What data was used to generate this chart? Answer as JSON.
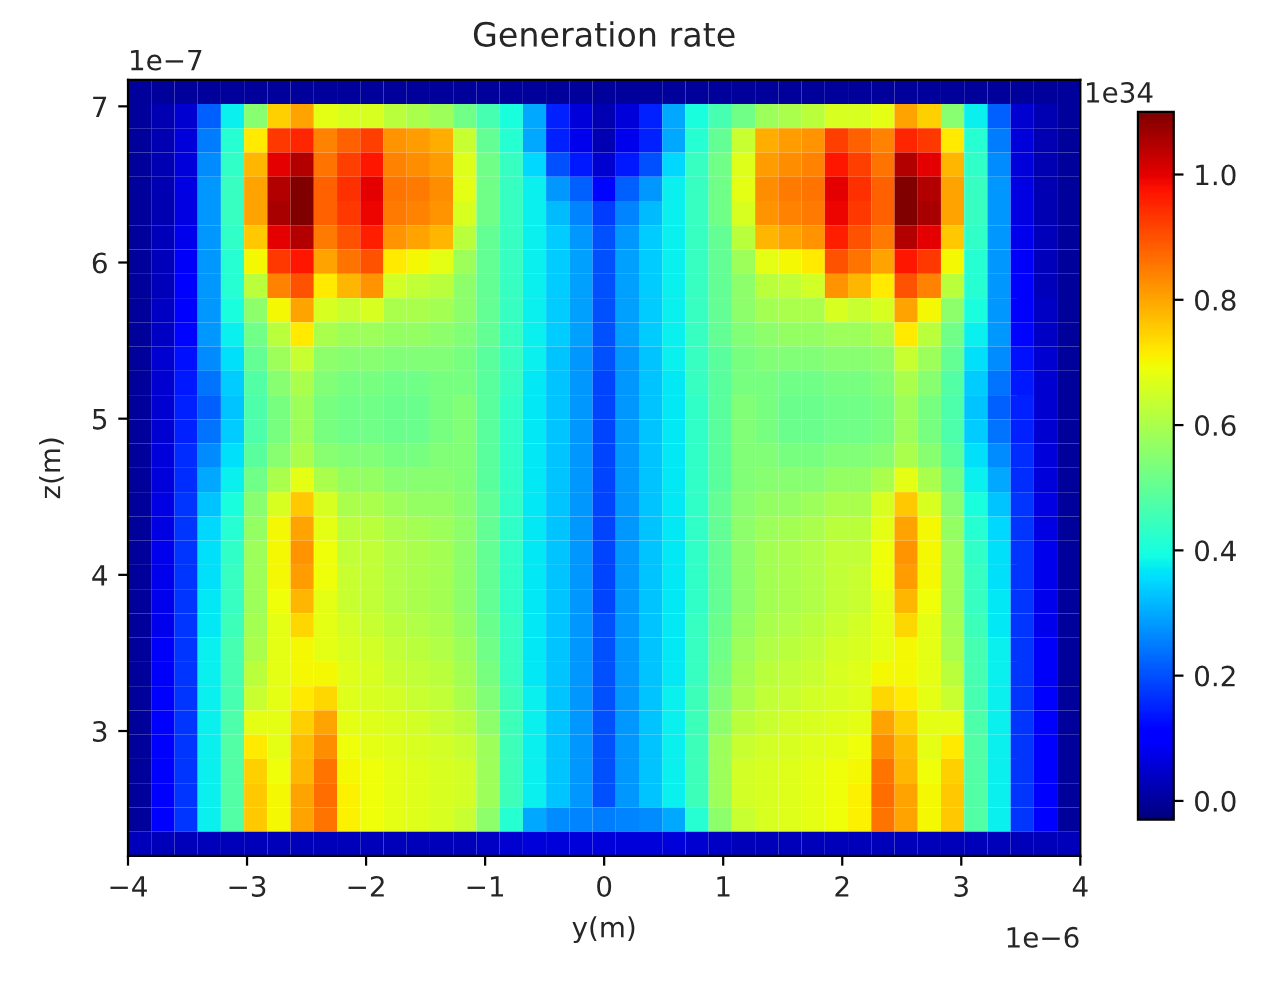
{
  "chart_data": {
    "type": "heatmap",
    "title": "Generation rate",
    "xlabel": "y(m)",
    "ylabel": "z(m)",
    "xlim": [
      -4,
      4
    ],
    "xticks": [
      {
        "value": -4,
        "label": "−4"
      },
      {
        "value": -3,
        "label": "−3"
      },
      {
        "value": -2,
        "label": "−2"
      },
      {
        "value": -1,
        "label": "−1"
      },
      0,
      1,
      2,
      3,
      4
    ],
    "ylim": [
      2.2,
      7.17
    ],
    "yticks": [
      3,
      4,
      5,
      6,
      7
    ],
    "clim": [
      -0.03,
      1.1
    ],
    "cticks": [
      {
        "value": 0,
        "label": "0.0"
      },
      0.2,
      0.4,
      0.6,
      0.8,
      {
        "value": 1,
        "label": "1.0"
      }
    ],
    "annotations": [
      "1e−7",
      "1e34",
      "1e−6"
    ],
    "cells": [
      [
        0,
        0,
        0,
        0,
        0,
        0,
        0,
        0,
        0,
        0,
        0,
        0,
        0,
        0,
        0,
        0,
        0,
        0,
        0,
        0,
        0,
        0,
        0,
        0,
        0,
        0,
        0,
        0,
        0,
        0,
        0,
        0,
        0,
        0,
        0,
        0,
        0,
        0,
        0,
        0,
        0
      ],
      [
        0,
        0.02,
        0.05,
        0.22,
        0.38,
        0.55,
        0.75,
        0.8,
        0.68,
        0.66,
        0.66,
        0.62,
        0.6,
        0.58,
        0.52,
        0.46,
        0.4,
        0.3,
        0.15,
        0.06,
        0.02,
        0.06,
        0.15,
        0.3,
        0.4,
        0.46,
        0.52,
        0.58,
        0.6,
        0.62,
        0.66,
        0.66,
        0.68,
        0.8,
        0.75,
        0.55,
        0.38,
        0.22,
        0.05,
        0.02,
        0
      ],
      [
        0,
        0.02,
        0.06,
        0.25,
        0.42,
        0.72,
        0.93,
        0.95,
        0.84,
        0.88,
        0.92,
        0.82,
        0.81,
        0.79,
        0.64,
        0.5,
        0.42,
        0.3,
        0.15,
        0.08,
        0.02,
        0.08,
        0.15,
        0.3,
        0.42,
        0.5,
        0.64,
        0.79,
        0.81,
        0.82,
        0.92,
        0.88,
        0.84,
        0.95,
        0.93,
        0.72,
        0.42,
        0.25,
        0.06,
        0.02,
        0
      ],
      [
        0,
        0.02,
        0.06,
        0.27,
        0.43,
        0.78,
        1.0,
        1.05,
        0.86,
        0.92,
        0.97,
        0.84,
        0.83,
        0.81,
        0.67,
        0.52,
        0.44,
        0.35,
        0.2,
        0.14,
        0.05,
        0.14,
        0.2,
        0.35,
        0.44,
        0.52,
        0.67,
        0.81,
        0.83,
        0.84,
        0.97,
        0.92,
        0.86,
        1.05,
        1.0,
        0.78,
        0.43,
        0.27,
        0.06,
        0.02,
        0
      ],
      [
        0,
        0.02,
        0.07,
        0.28,
        0.44,
        0.8,
        1.05,
        1.1,
        0.88,
        0.94,
        1.0,
        0.86,
        0.85,
        0.83,
        0.68,
        0.52,
        0.44,
        0.38,
        0.28,
        0.22,
        0.12,
        0.22,
        0.28,
        0.38,
        0.44,
        0.52,
        0.68,
        0.83,
        0.85,
        0.86,
        1.0,
        0.94,
        0.88,
        1.1,
        1.05,
        0.8,
        0.44,
        0.28,
        0.07,
        0.02,
        0
      ],
      [
        0,
        0.02,
        0.07,
        0.28,
        0.44,
        0.8,
        1.06,
        1.1,
        0.88,
        0.93,
        0.99,
        0.85,
        0.84,
        0.82,
        0.66,
        0.52,
        0.44,
        0.38,
        0.32,
        0.26,
        0.18,
        0.26,
        0.32,
        0.38,
        0.44,
        0.52,
        0.66,
        0.82,
        0.84,
        0.85,
        0.99,
        0.93,
        0.88,
        1.1,
        1.06,
        0.8,
        0.44,
        0.28,
        0.07,
        0.02,
        0
      ],
      [
        0,
        0.03,
        0.08,
        0.28,
        0.43,
        0.76,
        1.0,
        1.05,
        0.85,
        0.9,
        0.96,
        0.82,
        0.8,
        0.78,
        0.62,
        0.5,
        0.44,
        0.38,
        0.34,
        0.28,
        0.2,
        0.28,
        0.34,
        0.38,
        0.44,
        0.5,
        0.62,
        0.78,
        0.8,
        0.82,
        0.96,
        0.9,
        0.85,
        1.05,
        1.0,
        0.76,
        0.43,
        0.28,
        0.08,
        0.03,
        0
      ],
      [
        0,
        0.03,
        0.09,
        0.28,
        0.42,
        0.7,
        0.93,
        0.97,
        0.8,
        0.86,
        0.9,
        0.72,
        0.7,
        0.68,
        0.58,
        0.5,
        0.44,
        0.38,
        0.34,
        0.29,
        0.2,
        0.29,
        0.34,
        0.38,
        0.44,
        0.5,
        0.58,
        0.68,
        0.7,
        0.72,
        0.9,
        0.86,
        0.8,
        0.97,
        0.93,
        0.7,
        0.42,
        0.28,
        0.09,
        0.03,
        0
      ],
      [
        0,
        0.03,
        0.1,
        0.28,
        0.42,
        0.62,
        0.84,
        0.9,
        0.72,
        0.78,
        0.82,
        0.65,
        0.63,
        0.62,
        0.56,
        0.5,
        0.44,
        0.38,
        0.34,
        0.29,
        0.2,
        0.29,
        0.34,
        0.38,
        0.44,
        0.5,
        0.56,
        0.62,
        0.63,
        0.65,
        0.82,
        0.78,
        0.72,
        0.9,
        0.84,
        0.62,
        0.42,
        0.28,
        0.1,
        0.03,
        0
      ],
      [
        0,
        0.04,
        0.11,
        0.28,
        0.4,
        0.56,
        0.7,
        0.8,
        0.66,
        0.64,
        0.66,
        0.6,
        0.6,
        0.59,
        0.56,
        0.5,
        0.44,
        0.38,
        0.34,
        0.29,
        0.2,
        0.29,
        0.34,
        0.38,
        0.44,
        0.5,
        0.56,
        0.59,
        0.6,
        0.6,
        0.66,
        0.64,
        0.66,
        0.8,
        0.7,
        0.56,
        0.4,
        0.28,
        0.11,
        0.04,
        0
      ],
      [
        0,
        0.04,
        0.12,
        0.28,
        0.38,
        0.52,
        0.62,
        0.72,
        0.6,
        0.58,
        0.58,
        0.57,
        0.57,
        0.56,
        0.54,
        0.5,
        0.44,
        0.38,
        0.34,
        0.29,
        0.2,
        0.29,
        0.34,
        0.38,
        0.44,
        0.5,
        0.54,
        0.56,
        0.57,
        0.57,
        0.58,
        0.58,
        0.6,
        0.72,
        0.62,
        0.52,
        0.38,
        0.28,
        0.12,
        0.04,
        0
      ],
      [
        0,
        0.05,
        0.13,
        0.27,
        0.36,
        0.5,
        0.58,
        0.64,
        0.56,
        0.55,
        0.55,
        0.54,
        0.54,
        0.54,
        0.53,
        0.49,
        0.44,
        0.38,
        0.33,
        0.28,
        0.2,
        0.28,
        0.33,
        0.38,
        0.44,
        0.49,
        0.53,
        0.54,
        0.54,
        0.54,
        0.55,
        0.55,
        0.56,
        0.64,
        0.58,
        0.5,
        0.36,
        0.27,
        0.13,
        0.05,
        0
      ],
      [
        0,
        0.05,
        0.14,
        0.24,
        0.34,
        0.48,
        0.55,
        0.6,
        0.54,
        0.53,
        0.53,
        0.52,
        0.52,
        0.53,
        0.53,
        0.49,
        0.44,
        0.37,
        0.33,
        0.28,
        0.19,
        0.28,
        0.33,
        0.37,
        0.44,
        0.49,
        0.53,
        0.53,
        0.52,
        0.52,
        0.53,
        0.53,
        0.54,
        0.6,
        0.55,
        0.48,
        0.34,
        0.24,
        0.14,
        0.05,
        0
      ],
      [
        0,
        0.05,
        0.15,
        0.22,
        0.33,
        0.47,
        0.53,
        0.58,
        0.53,
        0.52,
        0.52,
        0.51,
        0.51,
        0.53,
        0.54,
        0.49,
        0.43,
        0.37,
        0.33,
        0.28,
        0.19,
        0.28,
        0.33,
        0.37,
        0.43,
        0.49,
        0.54,
        0.53,
        0.51,
        0.51,
        0.52,
        0.52,
        0.53,
        0.58,
        0.53,
        0.47,
        0.33,
        0.22,
        0.15,
        0.05,
        0
      ],
      [
        0,
        0.05,
        0.15,
        0.24,
        0.34,
        0.47,
        0.53,
        0.58,
        0.53,
        0.52,
        0.52,
        0.51,
        0.51,
        0.53,
        0.54,
        0.49,
        0.43,
        0.37,
        0.33,
        0.28,
        0.19,
        0.28,
        0.33,
        0.37,
        0.43,
        0.49,
        0.54,
        0.53,
        0.51,
        0.51,
        0.52,
        0.52,
        0.53,
        0.58,
        0.53,
        0.47,
        0.34,
        0.24,
        0.15,
        0.05,
        0
      ],
      [
        0,
        0.06,
        0.16,
        0.27,
        0.36,
        0.49,
        0.55,
        0.6,
        0.55,
        0.54,
        0.54,
        0.53,
        0.53,
        0.54,
        0.54,
        0.49,
        0.43,
        0.37,
        0.33,
        0.28,
        0.19,
        0.28,
        0.33,
        0.37,
        0.43,
        0.49,
        0.54,
        0.54,
        0.53,
        0.53,
        0.54,
        0.54,
        0.55,
        0.6,
        0.55,
        0.49,
        0.36,
        0.27,
        0.16,
        0.06,
        0
      ],
      [
        0,
        0.06,
        0.16,
        0.3,
        0.38,
        0.52,
        0.6,
        0.68,
        0.6,
        0.57,
        0.57,
        0.55,
        0.55,
        0.55,
        0.54,
        0.49,
        0.43,
        0.37,
        0.33,
        0.28,
        0.19,
        0.28,
        0.33,
        0.37,
        0.43,
        0.49,
        0.54,
        0.55,
        0.55,
        0.55,
        0.57,
        0.57,
        0.6,
        0.68,
        0.6,
        0.52,
        0.38,
        0.3,
        0.16,
        0.06,
        0
      ],
      [
        0,
        0.07,
        0.17,
        0.33,
        0.4,
        0.55,
        0.66,
        0.76,
        0.66,
        0.6,
        0.6,
        0.58,
        0.57,
        0.57,
        0.55,
        0.5,
        0.43,
        0.37,
        0.33,
        0.28,
        0.19,
        0.28,
        0.33,
        0.37,
        0.43,
        0.5,
        0.55,
        0.57,
        0.57,
        0.58,
        0.6,
        0.6,
        0.66,
        0.76,
        0.66,
        0.55,
        0.4,
        0.33,
        0.17,
        0.07,
        0
      ],
      [
        0,
        0.07,
        0.17,
        0.35,
        0.42,
        0.57,
        0.7,
        0.8,
        0.68,
        0.62,
        0.62,
        0.6,
        0.59,
        0.58,
        0.56,
        0.5,
        0.43,
        0.37,
        0.33,
        0.28,
        0.19,
        0.28,
        0.33,
        0.37,
        0.43,
        0.5,
        0.56,
        0.58,
        0.59,
        0.6,
        0.62,
        0.62,
        0.68,
        0.8,
        0.7,
        0.57,
        0.42,
        0.35,
        0.17,
        0.07,
        0
      ],
      [
        0,
        0.08,
        0.17,
        0.36,
        0.43,
        0.58,
        0.7,
        0.82,
        0.69,
        0.63,
        0.63,
        0.61,
        0.6,
        0.59,
        0.56,
        0.5,
        0.43,
        0.37,
        0.33,
        0.28,
        0.19,
        0.28,
        0.33,
        0.37,
        0.43,
        0.5,
        0.56,
        0.59,
        0.6,
        0.61,
        0.63,
        0.63,
        0.69,
        0.82,
        0.7,
        0.58,
        0.43,
        0.36,
        0.17,
        0.08,
        0
      ],
      [
        0,
        0.08,
        0.17,
        0.36,
        0.44,
        0.58,
        0.7,
        0.81,
        0.69,
        0.64,
        0.63,
        0.61,
        0.6,
        0.59,
        0.56,
        0.5,
        0.43,
        0.37,
        0.33,
        0.28,
        0.19,
        0.28,
        0.33,
        0.37,
        0.43,
        0.5,
        0.56,
        0.59,
        0.6,
        0.61,
        0.63,
        0.64,
        0.69,
        0.81,
        0.7,
        0.58,
        0.44,
        0.36,
        0.17,
        0.08,
        0
      ],
      [
        0,
        0.08,
        0.17,
        0.37,
        0.44,
        0.58,
        0.69,
        0.78,
        0.68,
        0.64,
        0.63,
        0.61,
        0.6,
        0.59,
        0.56,
        0.5,
        0.43,
        0.37,
        0.33,
        0.28,
        0.19,
        0.28,
        0.33,
        0.37,
        0.43,
        0.5,
        0.56,
        0.59,
        0.6,
        0.61,
        0.63,
        0.64,
        0.68,
        0.78,
        0.69,
        0.58,
        0.44,
        0.37,
        0.17,
        0.08,
        0
      ],
      [
        0,
        0.08,
        0.17,
        0.37,
        0.45,
        0.59,
        0.68,
        0.74,
        0.68,
        0.65,
        0.64,
        0.62,
        0.61,
        0.6,
        0.57,
        0.51,
        0.44,
        0.37,
        0.33,
        0.28,
        0.2,
        0.28,
        0.33,
        0.37,
        0.44,
        0.51,
        0.57,
        0.6,
        0.61,
        0.62,
        0.64,
        0.65,
        0.68,
        0.74,
        0.68,
        0.59,
        0.45,
        0.37,
        0.17,
        0.08,
        0
      ],
      [
        0,
        0.09,
        0.17,
        0.38,
        0.46,
        0.6,
        0.68,
        0.7,
        0.68,
        0.66,
        0.65,
        0.63,
        0.62,
        0.61,
        0.58,
        0.52,
        0.44,
        0.37,
        0.33,
        0.28,
        0.2,
        0.28,
        0.33,
        0.37,
        0.44,
        0.52,
        0.58,
        0.61,
        0.62,
        0.63,
        0.65,
        0.66,
        0.68,
        0.7,
        0.68,
        0.6,
        0.46,
        0.38,
        0.17,
        0.09,
        0
      ],
      [
        0,
        0.09,
        0.17,
        0.38,
        0.46,
        0.62,
        0.68,
        0.7,
        0.7,
        0.67,
        0.66,
        0.64,
        0.63,
        0.62,
        0.59,
        0.53,
        0.44,
        0.37,
        0.33,
        0.28,
        0.2,
        0.28,
        0.33,
        0.37,
        0.44,
        0.53,
        0.59,
        0.62,
        0.63,
        0.64,
        0.66,
        0.67,
        0.7,
        0.7,
        0.68,
        0.62,
        0.46,
        0.38,
        0.17,
        0.09,
        0
      ],
      [
        0,
        0.1,
        0.17,
        0.38,
        0.46,
        0.64,
        0.68,
        0.72,
        0.74,
        0.67,
        0.66,
        0.65,
        0.64,
        0.63,
        0.6,
        0.54,
        0.45,
        0.38,
        0.33,
        0.28,
        0.2,
        0.28,
        0.33,
        0.38,
        0.45,
        0.54,
        0.6,
        0.63,
        0.64,
        0.65,
        0.66,
        0.67,
        0.74,
        0.72,
        0.68,
        0.64,
        0.46,
        0.38,
        0.17,
        0.1,
        0
      ],
      [
        0,
        0.1,
        0.17,
        0.38,
        0.47,
        0.68,
        0.68,
        0.75,
        0.8,
        0.68,
        0.67,
        0.66,
        0.65,
        0.64,
        0.62,
        0.56,
        0.45,
        0.38,
        0.33,
        0.28,
        0.2,
        0.28,
        0.33,
        0.38,
        0.45,
        0.56,
        0.62,
        0.64,
        0.65,
        0.66,
        0.67,
        0.68,
        0.8,
        0.75,
        0.68,
        0.68,
        0.47,
        0.38,
        0.17,
        0.1,
        0
      ],
      [
        0,
        0.1,
        0.17,
        0.38,
        0.48,
        0.72,
        0.68,
        0.77,
        0.83,
        0.69,
        0.68,
        0.67,
        0.66,
        0.65,
        0.64,
        0.58,
        0.45,
        0.38,
        0.33,
        0.28,
        0.2,
        0.28,
        0.33,
        0.38,
        0.45,
        0.58,
        0.64,
        0.65,
        0.66,
        0.67,
        0.68,
        0.69,
        0.83,
        0.77,
        0.68,
        0.72,
        0.48,
        0.38,
        0.17,
        0.1,
        0
      ],
      [
        0,
        0.1,
        0.17,
        0.38,
        0.48,
        0.75,
        0.69,
        0.78,
        0.86,
        0.7,
        0.69,
        0.68,
        0.67,
        0.66,
        0.65,
        0.58,
        0.45,
        0.38,
        0.33,
        0.28,
        0.2,
        0.28,
        0.33,
        0.38,
        0.45,
        0.58,
        0.65,
        0.66,
        0.67,
        0.68,
        0.69,
        0.7,
        0.86,
        0.78,
        0.69,
        0.75,
        0.48,
        0.38,
        0.17,
        0.1,
        0
      ],
      [
        0,
        0.1,
        0.17,
        0.38,
        0.48,
        0.76,
        0.7,
        0.8,
        0.87,
        0.71,
        0.69,
        0.68,
        0.67,
        0.66,
        0.65,
        0.58,
        0.45,
        0.38,
        0.33,
        0.28,
        0.2,
        0.28,
        0.33,
        0.38,
        0.45,
        0.58,
        0.65,
        0.66,
        0.67,
        0.68,
        0.69,
        0.71,
        0.87,
        0.8,
        0.7,
        0.76,
        0.48,
        0.38,
        0.17,
        0.1,
        0
      ],
      [
        0,
        0.1,
        0.17,
        0.38,
        0.48,
        0.76,
        0.7,
        0.8,
        0.86,
        0.71,
        0.69,
        0.68,
        0.67,
        0.66,
        0.64,
        0.56,
        0.42,
        0.3,
        0.27,
        0.26,
        0.25,
        0.26,
        0.27,
        0.3,
        0.42,
        0.56,
        0.64,
        0.66,
        0.67,
        0.68,
        0.69,
        0.71,
        0.86,
        0.8,
        0.7,
        0.76,
        0.48,
        0.38,
        0.17,
        0.1,
        0
      ],
      [
        0.03,
        0.03,
        0.03,
        0.03,
        0.03,
        0.03,
        0.03,
        0.03,
        0.03,
        0.03,
        0.03,
        0.03,
        0.03,
        0.03,
        0.03,
        0.04,
        0.05,
        0.06,
        0.06,
        0.06,
        0.06,
        0.06,
        0.06,
        0.06,
        0.05,
        0.04,
        0.03,
        0.03,
        0.03,
        0.03,
        0.03,
        0.03,
        0.03,
        0.03,
        0.03,
        0.03,
        0.03,
        0.03,
        0.03,
        0.03,
        0.03
      ]
    ]
  }
}
